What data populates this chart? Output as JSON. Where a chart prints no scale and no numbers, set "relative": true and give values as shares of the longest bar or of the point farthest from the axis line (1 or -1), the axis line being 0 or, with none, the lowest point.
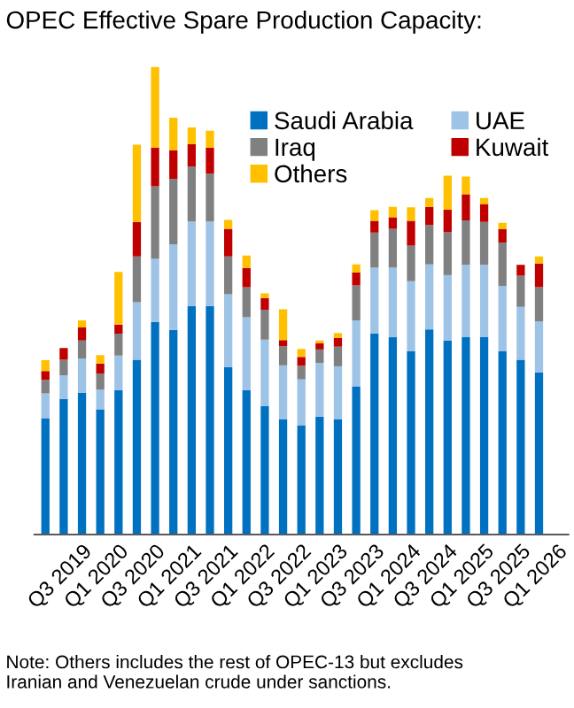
{
  "chart_data": {
    "type": "bar",
    "stacked": true,
    "relative": true,
    "grid": false,
    "legend": "top right",
    "title": "OPEC Effective Spare Production Capacity:",
    "annotations": [
      "Note: Others includes the rest of OPEC-13 but excludes\nIranian and Venezuelan crude under sanctions."
    ],
    "categories": [
      null,
      null,
      "Q3 2019",
      null,
      "Q1 2020",
      null,
      "Q3 2020",
      null,
      "Q1 2021",
      null,
      "Q3 2021",
      null,
      "Q1 2022",
      null,
      "Q3 2022",
      null,
      "Q1 2023",
      null,
      "Q3 2023",
      null,
      "Q1 2024",
      null,
      "Q3 2024",
      null,
      "Q1 2025",
      null,
      "Q3 2025",
      null,
      "Q1 2026"
    ],
    "series": [
      {
        "name": "Saudi Arabia",
        "color": "#0070c0",
        "values": [
          0.249,
          0.29,
          0.303,
          0.268,
          0.309,
          0.374,
          0.455,
          0.438,
          0.489,
          0.489,
          0.358,
          0.309,
          0.275,
          0.247,
          0.234,
          0.252,
          0.247,
          0.317,
          0.43,
          0.422,
          0.392,
          0.439,
          0.415,
          0.422,
          0.422,
          0.392,
          0.374,
          0.347,
          null
        ]
      },
      {
        "name": "UAE",
        "color": "#9dc3e6",
        "values": [
          0.053,
          0.051,
          0.074,
          0.042,
          0.074,
          0.123,
          0.135,
          0.183,
          0.181,
          0.181,
          0.156,
          0.156,
          0.142,
          0.115,
          0.098,
          0.115,
          0.113,
          0.141,
          0.141,
          0.149,
          0.15,
          0.139,
          0.14,
          0.155,
          0.155,
          0.14,
          0.113,
          0.109,
          null
        ]
      },
      {
        "name": "Iraq",
        "color": "#808080",
        "values": [
          0.029,
          0.033,
          0.038,
          0.034,
          0.047,
          0.098,
          0.155,
          0.14,
          0.117,
          0.102,
          0.081,
          0.064,
          0.064,
          0.041,
          0.029,
          0.029,
          0.042,
          0.075,
          0.075,
          0.083,
          0.076,
          0.084,
          0.092,
          0.095,
          0.092,
          0.093,
          0.067,
          0.073,
          null
        ]
      },
      {
        "name": "Kuwait",
        "color": "#c00000",
        "values": [
          0.019,
          0.025,
          0.028,
          0.022,
          0.019,
          0.074,
          0.083,
          0.061,
          0.048,
          0.056,
          0.059,
          0.041,
          0.025,
          0.013,
          0.019,
          0.013,
          0.019,
          0.028,
          0.025,
          0.025,
          0.053,
          0.039,
          0.048,
          0.056,
          0.038,
          0.028,
          0.023,
          0.051,
          null
        ]
      },
      {
        "name": "Others",
        "color": "#ffc000",
        "values": [
          0.023,
          0,
          0.015,
          0.018,
          0.113,
          0.165,
          0.172,
          0.07,
          0.036,
          0.036,
          0.019,
          0.027,
          0.01,
          0.066,
          0.017,
          0.006,
          0.01,
          0.017,
          0.023,
          0.022,
          0.029,
          0.019,
          0.073,
          0.038,
          0.013,
          0.014,
          0,
          0.015,
          null
        ]
      }
    ]
  }
}
